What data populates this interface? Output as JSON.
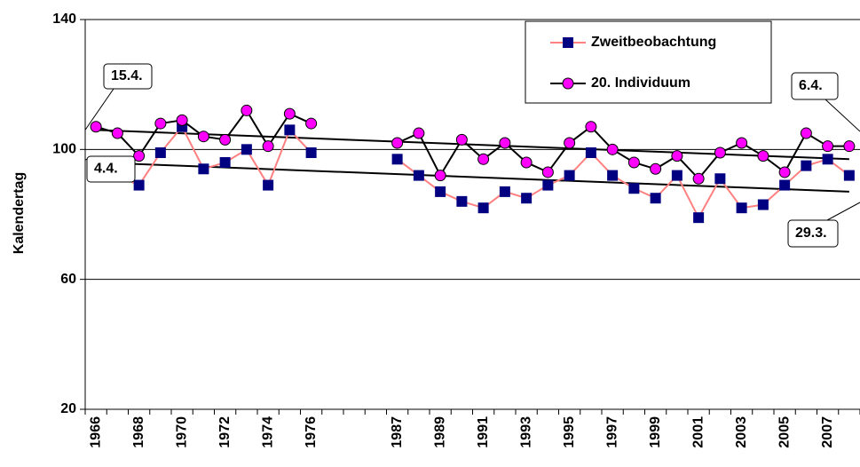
{
  "chart_data": {
    "type": "line",
    "y_label": "Kalendertag",
    "categories": [
      "1966",
      null,
      "1968",
      null,
      "1970",
      null,
      "1972",
      null,
      "1974",
      null,
      "1976",
      null,
      null,
      null,
      "1987",
      null,
      "1989",
      null,
      "1991",
      null,
      "1993",
      null,
      "1995",
      null,
      "1997",
      null,
      "1999",
      null,
      "2001",
      null,
      "2003",
      null,
      "2005",
      null,
      "2007",
      null
    ],
    "series": [
      {
        "name": "Zweitbeobachtung",
        "color": "#ff8080",
        "marker": "square",
        "marker_color": "#000080",
        "values": [
          93,
          92,
          89,
          99,
          107,
          94,
          96,
          100,
          89,
          106,
          99,
          null,
          null,
          null,
          97,
          92,
          87,
          84,
          82,
          87,
          85,
          89,
          92,
          99,
          92,
          88,
          85,
          92,
          79,
          91,
          82,
          83,
          89,
          95,
          97,
          92
        ]
      },
      {
        "name": "20. Individuum",
        "color": "#000000",
        "marker": "circle",
        "marker_color": "#ff00ff",
        "values": [
          107,
          105,
          98,
          108,
          109,
          104,
          103,
          112,
          101,
          111,
          108,
          null,
          null,
          null,
          102,
          105,
          92,
          103,
          97,
          102,
          96,
          93,
          102,
          107,
          100,
          96,
          94,
          98,
          91,
          99,
          102,
          98,
          93,
          105,
          101,
          101
        ]
      }
    ],
    "trendlines": [
      {
        "color": "#000000",
        "values": [
          106,
          97
        ]
      },
      {
        "color": "#000000",
        "values": [
          96,
          87
        ]
      }
    ],
    "annotations": [
      "15.4.",
      "4.4.",
      "6.4.",
      "29.3."
    ],
    "ylim": [
      20,
      140
    ],
    "yticks": [
      20,
      60,
      100,
      140
    ],
    "grid": true,
    "legend": "top-right"
  }
}
